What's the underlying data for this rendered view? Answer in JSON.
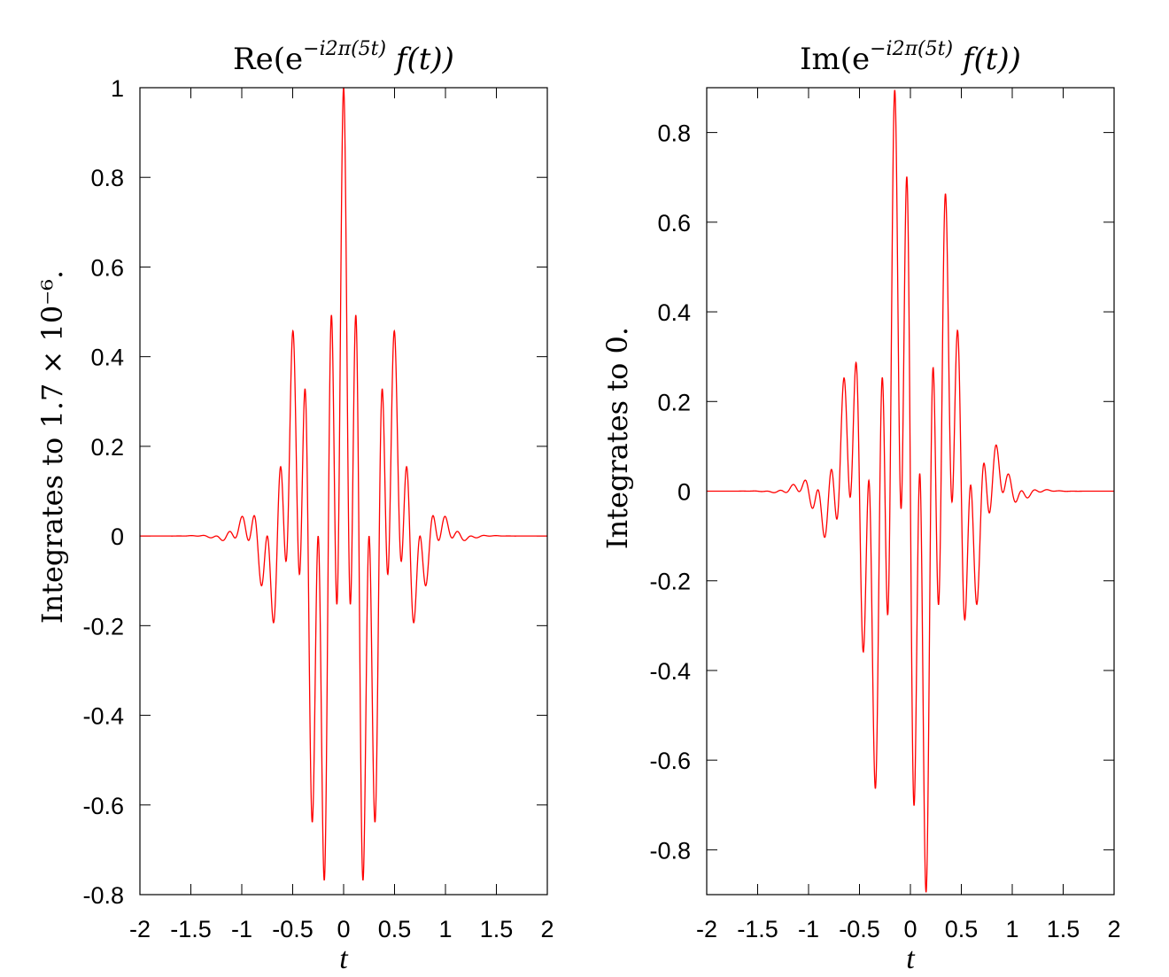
{
  "chart_data": [
    {
      "type": "line",
      "title": {
        "prefix": "Re",
        "exponent": "−i2π(5t)",
        "suffix": "f(t)"
      },
      "xlabel": "t",
      "ylabel": "Integrates to 1.7 × 10⁻⁶.",
      "xlim": [
        -2,
        2
      ],
      "ylim": [
        -0.8,
        1
      ],
      "xticks": [
        -2,
        -1.5,
        -1,
        -0.5,
        0,
        0.5,
        1,
        1.5,
        2
      ],
      "xtick_labels": [
        "-2",
        "-1.5",
        "-1",
        "-0.5",
        "0",
        "0.5",
        "1",
        "1.5",
        "2"
      ],
      "yticks": [
        -0.8,
        -0.6,
        -0.4,
        -0.2,
        0,
        0.2,
        0.4,
        0.6,
        0.8,
        1
      ],
      "ytick_labels": [
        "-0.8",
        "-0.6",
        "-0.4",
        "-0.2",
        "0",
        "0.2",
        "0.4",
        "0.6",
        "0.8",
        "1"
      ],
      "series": [
        {
          "function": "Re(exp(-i*2*pi*5*t) * cos(2*pi*3*t) * exp(-pi*t^2))",
          "color": "#ff0000"
        }
      ],
      "grid": false
    },
    {
      "type": "line",
      "title": {
        "prefix": "Im",
        "exponent": "−i2π(5t)",
        "suffix": "f(t)"
      },
      "xlabel": "t",
      "ylabel": "Integrates to 0.",
      "xlim": [
        -2,
        2
      ],
      "ylim": [
        -0.9,
        0.9
      ],
      "xticks": [
        -2,
        -1.5,
        -1,
        -0.5,
        0,
        0.5,
        1,
        1.5,
        2
      ],
      "xtick_labels": [
        "-2",
        "-1.5",
        "-1",
        "-0.5",
        "0",
        "0.5",
        "1",
        "1.5",
        "2"
      ],
      "yticks": [
        -0.8,
        -0.6,
        -0.4,
        -0.2,
        0,
        0.2,
        0.4,
        0.6,
        0.8
      ],
      "ytick_labels": [
        "-0.8",
        "-0.6",
        "-0.4",
        "-0.2",
        "0",
        "0.2",
        "0.4",
        "0.6",
        "0.8"
      ],
      "series": [
        {
          "function": "Im(exp(-i*2*pi*5*t) * cos(2*pi*3*t) * exp(-pi*t^2))",
          "color": "#ff0000"
        }
      ],
      "grid": false
    }
  ]
}
